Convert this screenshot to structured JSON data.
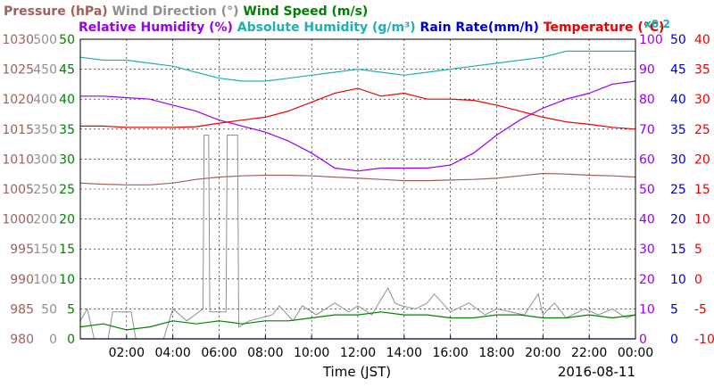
{
  "chart_data": {
    "type": "line",
    "date": "2016-08-11",
    "xlabel": "Time (JST)",
    "x_ticks": [
      "02:00",
      "04:00",
      "06:00",
      "08:00",
      "10:00",
      "12:00",
      "14:00",
      "16:00",
      "18:00",
      "20:00",
      "22:00",
      "00:00"
    ],
    "legend_row1": [
      {
        "name": "Pressure (hPa)",
        "color": "#a0605a"
      },
      {
        "name": "Wind Direction (°)",
        "color": "#909090"
      },
      {
        "name": "Wind Speed (m/s)",
        "color": "#008000"
      }
    ],
    "legend_row2": [
      {
        "name": "Relative Humidity (%)",
        "color": "#9900ee"
      },
      {
        "name": "Absolute Humidity (g/m³)",
        "color": "#20b0b0"
      },
      {
        "name": "Rain Rate(mm/h)",
        "color": "#0000cc"
      },
      {
        "name": "Temperature (°C)",
        "color": "#ee0000"
      }
    ],
    "abs_humidity_note": "x0.2",
    "axes": {
      "pressure": {
        "label_color": "#a0605a",
        "ticks": [
          "1030",
          "1025",
          "1020",
          "1015",
          "1010",
          "1005",
          "1000",
          "995",
          "990",
          "985",
          "980"
        ]
      },
      "wind_direction": {
        "label_color": "#909090",
        "ticks": [
          "500",
          "450",
          "400",
          "350",
          "300",
          "250",
          "200",
          "150",
          "100",
          "50",
          "0"
        ]
      },
      "wind_speed": {
        "label_color": "#008000",
        "ticks": [
          "50",
          "45",
          "40",
          "35",
          "30",
          "25",
          "20",
          "15",
          "10",
          "5",
          "0"
        ]
      },
      "humidity": {
        "label_color": "#9900ee",
        "ticks": [
          "100",
          "90",
          "80",
          "70",
          "60",
          "50",
          "40",
          "30",
          "20",
          "10",
          "0"
        ]
      },
      "rain_rate": {
        "label_color": "#0000cc",
        "ticks": [
          "50",
          "45",
          "40",
          "35",
          "30",
          "25",
          "20",
          "15",
          "10",
          "5",
          "0"
        ]
      },
      "temperature": {
        "label_color": "#ee0000",
        "ticks": [
          "40",
          "35",
          "30",
          "25",
          "20",
          "15",
          "10",
          "5",
          "0",
          "-5",
          "-10"
        ]
      }
    },
    "ylim_humidity": [
      0,
      100
    ],
    "xlim_hours": [
      0,
      24
    ],
    "grid": true,
    "series": [
      {
        "name": "Pressure (hPa)",
        "key": "pressure",
        "color": "#a0605a",
        "axis": [
          980,
          1030
        ],
        "x": [
          0,
          1,
          2,
          3,
          4,
          5,
          6,
          7,
          8,
          9,
          10,
          11,
          12,
          13,
          14,
          15,
          16,
          17,
          18,
          19,
          20,
          21,
          22,
          23,
          24
        ],
        "y": [
          1006,
          1005.8,
          1005.7,
          1005.7,
          1006,
          1006.6,
          1007,
          1007.2,
          1007.3,
          1007.3,
          1007.2,
          1007,
          1006.8,
          1006.6,
          1006.4,
          1006.4,
          1006.5,
          1006.6,
          1006.8,
          1007.2,
          1007.6,
          1007.5,
          1007.3,
          1007.2,
          1007
        ]
      },
      {
        "name": "Wind Direction (°)",
        "key": "wind_direction",
        "color": "#909090",
        "axis": [
          0,
          500
        ],
        "x": [
          0,
          0.3,
          0.6,
          1.2,
          1.4,
          2.2,
          2.4,
          3.6,
          4,
          4.6,
          5.3,
          5.35,
          5.55,
          5.6,
          6.3,
          6.35,
          6.8,
          6.85,
          7.3,
          8.3,
          8.6,
          9.2,
          9.6,
          10.2,
          11,
          11.6,
          12,
          12.6,
          13.3,
          13.6,
          13.9,
          14.5,
          15,
          15.3,
          16,
          16.8,
          17.5,
          18,
          18.6,
          19.2,
          19.8,
          20,
          20.5,
          21,
          21.8,
          22.4,
          23,
          23.6,
          24
        ],
        "y": [
          30,
          50,
          0,
          0,
          45,
          45,
          0,
          0,
          50,
          30,
          50,
          340,
          340,
          45,
          45,
          340,
          340,
          20,
          30,
          40,
          55,
          30,
          55,
          40,
          60,
          45,
          55,
          40,
          85,
          60,
          55,
          50,
          60,
          75,
          45,
          60,
          40,
          50,
          45,
          40,
          75,
          40,
          60,
          35,
          50,
          40,
          50,
          35,
          40
        ]
      },
      {
        "name": "Wind Speed (m/s)",
        "key": "wind_speed",
        "color": "#008000",
        "axis": [
          0,
          50
        ],
        "x": [
          0,
          1,
          2,
          3,
          4,
          5,
          6,
          7,
          8,
          9,
          10,
          11,
          12,
          13,
          14,
          15,
          16,
          17,
          18,
          19,
          20,
          21,
          22,
          23,
          24
        ],
        "y": [
          2,
          2.5,
          1.5,
          2,
          3,
          2.5,
          3,
          2.5,
          3,
          3,
          3.5,
          4,
          4,
          4.5,
          4,
          4,
          3.5,
          3.5,
          4,
          4,
          3.5,
          3.5,
          4,
          3.5,
          4
        ]
      },
      {
        "name": "Relative Humidity (%)",
        "key": "humidity",
        "color": "#9900ee",
        "axis": [
          0,
          100
        ],
        "x": [
          0,
          1,
          2,
          3,
          4,
          5,
          6,
          7,
          8,
          9,
          10,
          11,
          12,
          13,
          14,
          15,
          16,
          17,
          18,
          19,
          20,
          21,
          22,
          23,
          24
        ],
        "y": [
          81,
          81,
          80.5,
          80,
          78,
          76,
          73,
          71,
          69,
          66,
          62,
          57,
          56,
          57,
          57,
          57,
          58,
          62,
          68,
          73,
          77,
          80,
          82,
          85,
          86
        ]
      },
      {
        "name": "Absolute Humidity (g/m³)",
        "key": "abs_humidity",
        "color": "#20b0b0",
        "axis": [
          0,
          100
        ],
        "x": [
          0,
          1,
          2,
          3,
          4,
          5,
          6,
          7,
          8,
          9,
          10,
          11,
          12,
          13,
          14,
          15,
          16,
          17,
          18,
          19,
          20,
          21,
          22,
          23,
          24
        ],
        "y": [
          94,
          93,
          93,
          92,
          91,
          89,
          87,
          86,
          86,
          87,
          88,
          89,
          90,
          89,
          88,
          89,
          90,
          91,
          92,
          93,
          94,
          96,
          96,
          96,
          96
        ]
      },
      {
        "name": "Rain Rate(mm/h)",
        "key": "rain_rate",
        "color": "#0000cc",
        "axis": [
          0,
          50
        ],
        "x": [
          0,
          24
        ],
        "y": [
          0,
          0
        ]
      },
      {
        "name": "Temperature (°C)",
        "key": "temperature",
        "color": "#ee0000",
        "axis": [
          -10,
          40
        ],
        "x": [
          0,
          1,
          2,
          3,
          4,
          5,
          6,
          7,
          8,
          9,
          10,
          11,
          12,
          13,
          14,
          15,
          16,
          17,
          18,
          19,
          20,
          21,
          22,
          23,
          24
        ],
        "y": [
          25.5,
          25.5,
          25.3,
          25.3,
          25.3,
          25.4,
          26,
          26.5,
          27,
          28,
          29.5,
          31,
          31.8,
          30.5,
          31,
          30,
          30,
          29.8,
          29,
          28,
          27,
          26.2,
          25.8,
          25.3,
          25
        ]
      }
    ]
  }
}
